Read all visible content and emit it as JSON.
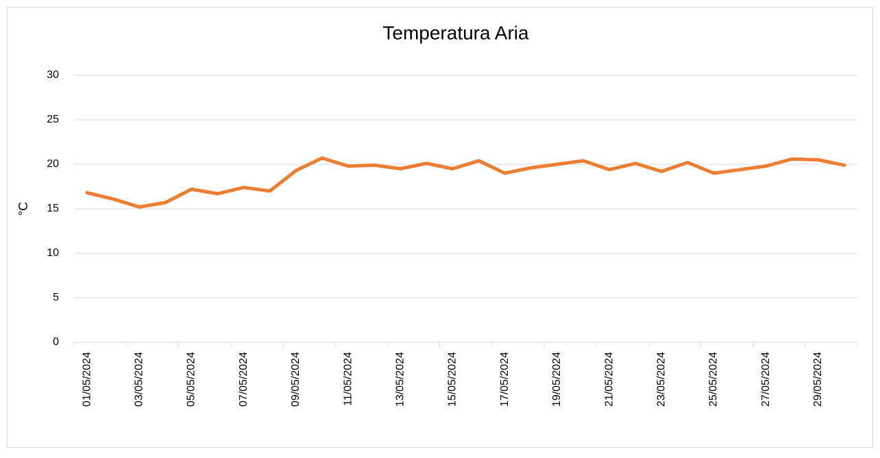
{
  "chart_data": {
    "type": "line",
    "title": "Temperatura Aria",
    "y_label": "°C",
    "categories": [
      "01/05/2024",
      null,
      "03/05/2024",
      null,
      "05/05/2024",
      null,
      "07/05/2024",
      null,
      "09/05/2024",
      null,
      "11/05/2024",
      null,
      "13/05/2024",
      null,
      "15/05/2024",
      null,
      "17/05/2024",
      null,
      "19/05/2024",
      null,
      "21/05/2024",
      null,
      "23/05/2024",
      null,
      "25/05/2024",
      null,
      "27/05/2024",
      null,
      "29/05/2024",
      null
    ],
    "series": [
      {
        "name": "Temperatura Aria",
        "color": "#ed7d31",
        "values": [
          16.8,
          16.1,
          15.2,
          15.7,
          17.2,
          16.7,
          17.4,
          17.0,
          19.3,
          20.7,
          19.8,
          19.9,
          19.5,
          20.1,
          19.5,
          20.4,
          19.0,
          19.6,
          20.0,
          20.4,
          19.4,
          20.1,
          19.2,
          20.2,
          19.0,
          19.4,
          19.8,
          20.6,
          20.5,
          19.9
        ]
      }
    ],
    "ylim": [
      0,
      30
    ],
    "yticks": [
      0,
      5,
      10,
      15,
      20,
      25,
      30
    ],
    "grid": true
  }
}
